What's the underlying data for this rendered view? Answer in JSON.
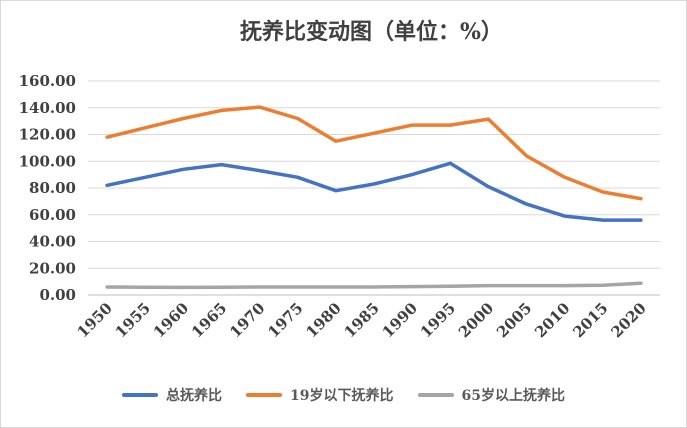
{
  "chart_data": {
    "type": "line",
    "title": "抚养比变动图（单位：%）",
    "xlabel": "",
    "ylabel": "",
    "ylim": [
      0,
      160
    ],
    "y_ticks": [
      "0.00",
      "20.00",
      "40.00",
      "60.00",
      "80.00",
      "100.00",
      "120.00",
      "140.00",
      "160.00"
    ],
    "grid": true,
    "legend_position": "bottom",
    "categories": [
      "1950",
      "1955",
      "1960",
      "1965",
      "1970",
      "1975",
      "1980",
      "1985",
      "1990",
      "1995",
      "2000",
      "2005",
      "2010",
      "2015",
      "2020"
    ],
    "series": [
      {
        "name": "总抚养比",
        "color": "#4472C4",
        "values": [
          82,
          88,
          94,
          97.5,
          93,
          88,
          78,
          83,
          90,
          98.5,
          81,
          68,
          59,
          56,
          56
        ]
      },
      {
        "name": "19岁以下抚养比",
        "color": "#ED7D31",
        "values": [
          118,
          125,
          132,
          138,
          140.5,
          132,
          115,
          121,
          127,
          127,
          131.5,
          104,
          88,
          77,
          72
        ]
      },
      {
        "name": "65岁以上抚养比",
        "color": "#A5A5A5",
        "values": [
          6,
          5.8,
          5.7,
          5.8,
          6,
          6,
          6,
          6,
          6.3,
          6.5,
          7,
          7,
          7,
          7.3,
          8.8
        ]
      }
    ]
  }
}
